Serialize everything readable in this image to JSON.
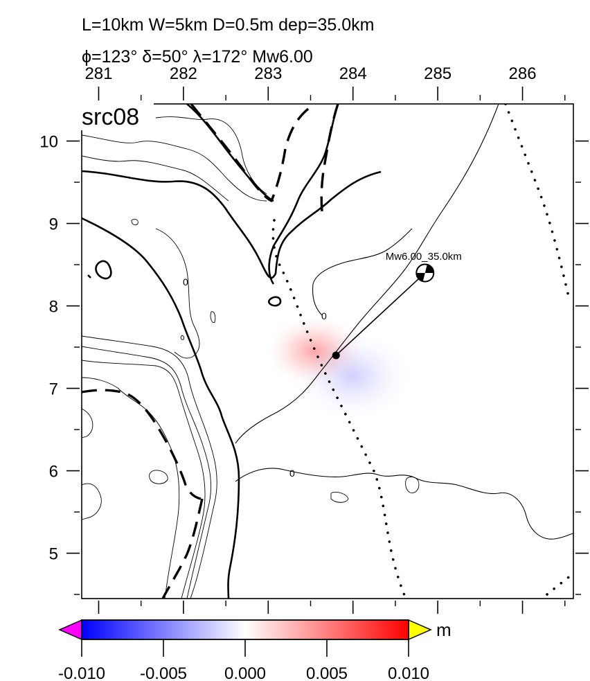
{
  "header": {
    "line1": "L=10km W=5km D=0.5m dep=35.0km",
    "line2": "ϕ=123° δ=50° λ=172° Mw6.00"
  },
  "panel_label": "src08",
  "chart_data": {
    "type": "heatmap",
    "x_ticks": [
      "281",
      "282",
      "283",
      "284",
      "285",
      "286"
    ],
    "y_ticks": [
      "5",
      "6",
      "7",
      "8",
      "9",
      "10"
    ],
    "xlim": [
      280.8,
      286.6
    ],
    "ylim": [
      4.45,
      10.45
    ],
    "contour_label": "0",
    "deformation": [
      {
        "x": 283.55,
        "y": 7.45,
        "value": 0.004
      },
      {
        "x": 284.0,
        "y": 7.15,
        "value": -0.0025
      }
    ],
    "source": {
      "label": "Mw6.00_35.0km",
      "epicenter": {
        "x": 284.85,
        "y": 8.4
      },
      "fault_top": {
        "x": 283.8,
        "y": 7.4
      }
    },
    "colorbar": {
      "unit": "m",
      "range": [
        -0.01,
        0.01
      ],
      "ticks": [
        "-0.010",
        "-0.005",
        "0.000",
        "0.005",
        "0.010"
      ],
      "colors": {
        "neg": "#0000ff",
        "zero": "#ffffff",
        "pos": "#ff0000",
        "under": "#ff00ff",
        "over": "#ffff00"
      }
    }
  }
}
